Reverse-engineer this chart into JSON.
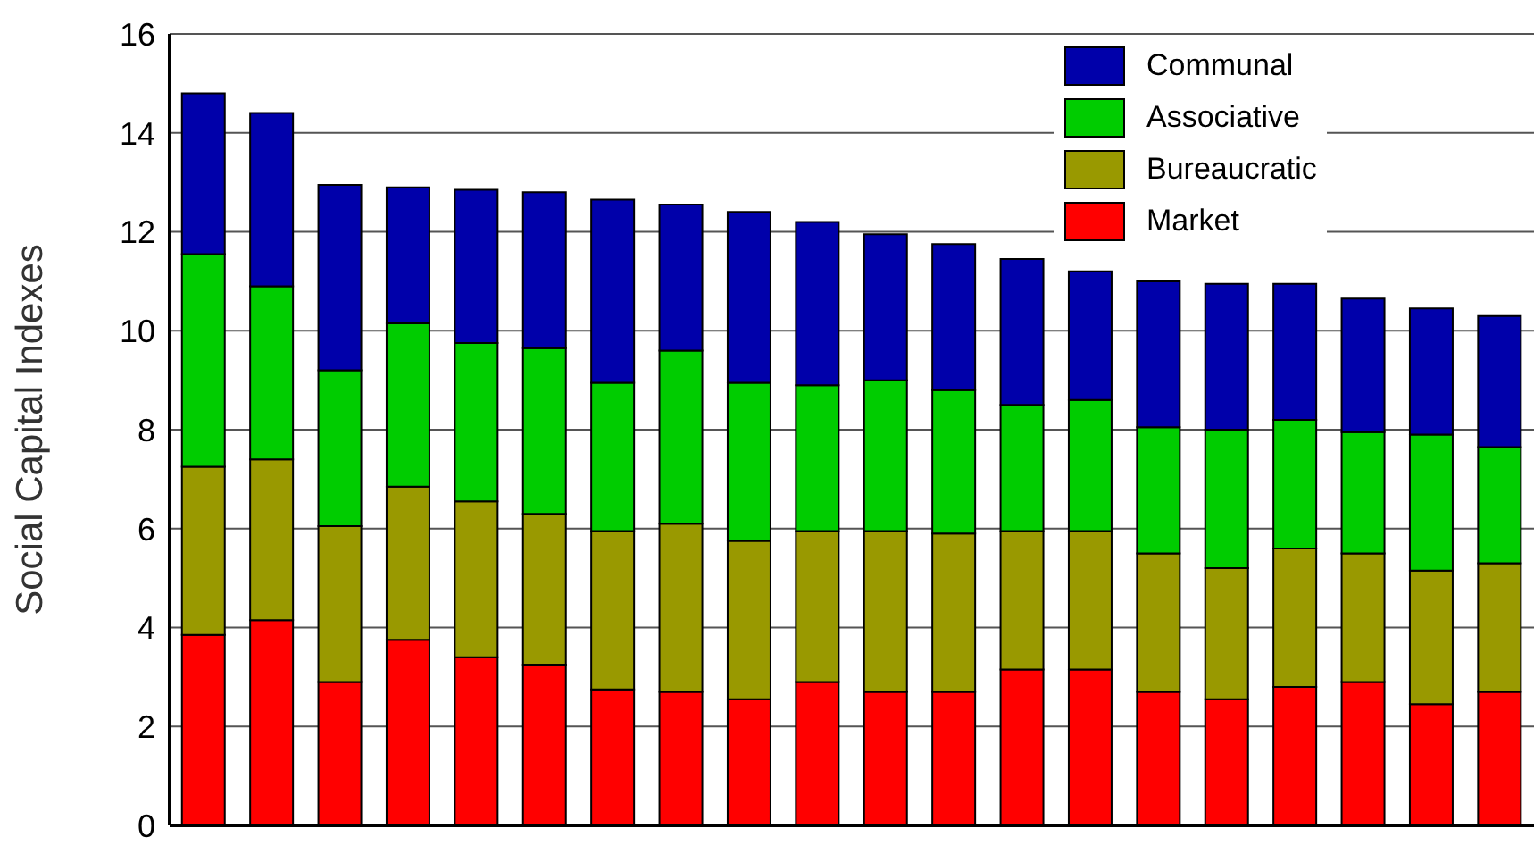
{
  "chart_data": {
    "type": "bar",
    "stacked": true,
    "ylabel": "Social Capital Indexes",
    "categories": [
      null,
      null,
      null,
      null,
      null,
      null,
      null,
      null,
      null,
      null,
      null,
      null,
      null,
      null,
      null,
      null,
      null,
      null,
      null,
      null
    ],
    "series": [
      {
        "name": "Market",
        "color": "#ff0000",
        "values": [
          3.85,
          4.15,
          2.9,
          3.75,
          3.4,
          3.25,
          2.75,
          2.7,
          2.55,
          2.9,
          2.7,
          2.7,
          3.15,
          3.15,
          2.7,
          2.55,
          2.8,
          2.9,
          2.45,
          2.7
        ]
      },
      {
        "name": "Bureaucratic",
        "color": "#999900",
        "values": [
          3.4,
          3.25,
          3.15,
          3.1,
          3.15,
          3.05,
          3.2,
          3.4,
          3.2,
          3.05,
          3.25,
          3.2,
          2.8,
          2.8,
          2.8,
          2.65,
          2.8,
          2.6,
          2.7,
          2.6
        ]
      },
      {
        "name": "Associative",
        "color": "#00cc00",
        "values": [
          4.3,
          3.5,
          3.15,
          3.3,
          3.2,
          3.35,
          3.0,
          3.5,
          3.2,
          2.95,
          3.05,
          2.9,
          2.55,
          2.65,
          2.55,
          2.8,
          2.6,
          2.45,
          2.75,
          2.35
        ]
      },
      {
        "name": "Communal",
        "color": "#0000aa",
        "values": [
          3.25,
          3.5,
          3.75,
          2.75,
          3.1,
          3.15,
          3.7,
          2.95,
          3.45,
          3.3,
          2.95,
          2.95,
          2.95,
          2.6,
          2.95,
          2.95,
          2.75,
          2.7,
          2.55,
          2.65
        ]
      }
    ],
    "ylim": [
      0,
      16
    ],
    "yticks": [
      0,
      2,
      4,
      6,
      8,
      10,
      12,
      14,
      16
    ],
    "grid": "y",
    "legend": "top right",
    "tick_labels": "y"
  }
}
